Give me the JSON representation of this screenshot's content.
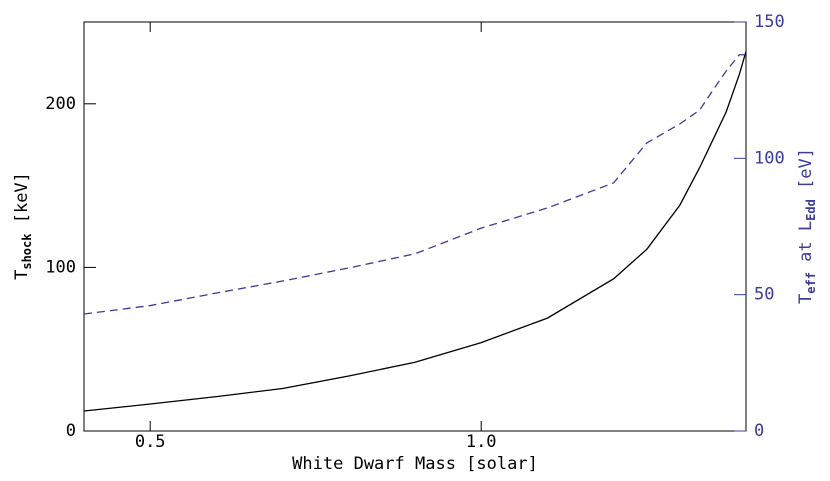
{
  "chart_data": {
    "type": "line",
    "xlabel": "White Dwarf Mass [solar]",
    "ylabel": [
      "T",
      "shock",
      " [keV]"
    ],
    "y2label": [
      "T",
      "eff",
      " at L",
      "Edd",
      " [eV]"
    ],
    "x": [
      0.4,
      0.5,
      0.6,
      0.7,
      0.8,
      0.9,
      1.0,
      1.1,
      1.2,
      1.25,
      1.3,
      1.33,
      1.35,
      1.37,
      1.39,
      1.4
    ],
    "series": [
      {
        "color": "#000000",
        "dash": false,
        "values": [
          12.2,
          16.5,
          21,
          26,
          33.6,
          42,
          54,
          69,
          93,
          111,
          138,
          161,
          178,
          195,
          218,
          232
        ]
      },
      {
        "color": "#3b3b9c",
        "dash": true,
        "axis": "y2",
        "values": [
          42.9,
          46,
          50.6,
          55,
          59.8,
          65,
          74.4,
          81.8,
          91,
          105.6,
          112.6,
          117.7,
          125,
          132,
          138,
          138
        ]
      }
    ],
    "xlim": [
      0.4,
      1.4
    ],
    "xticks": [
      0.5,
      {
        "value": 1,
        "label": "1.0"
      }
    ],
    "ylim": [
      0,
      250
    ],
    "yticks": [
      0,
      100,
      200
    ],
    "y2lim": [
      0,
      150
    ],
    "y2ticks": [
      0,
      50,
      100,
      150
    ],
    "y2color": "#3b3b9c"
  }
}
